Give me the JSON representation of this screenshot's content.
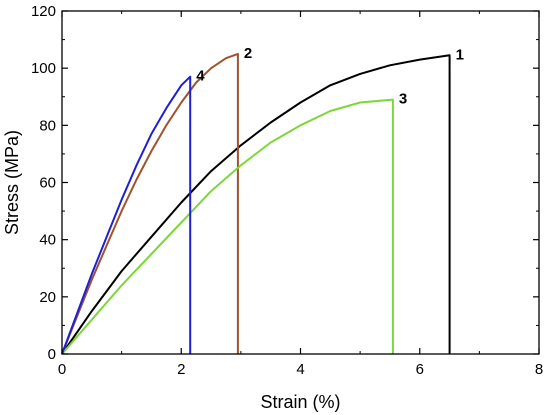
{
  "chart_data": {
    "type": "line",
    "title": "",
    "xlabel": "Strain (%)",
    "ylabel": "Stress (MPa)",
    "xlim": [
      0,
      8
    ],
    "ylim": [
      0,
      120
    ],
    "x_ticks": [
      0,
      2,
      4,
      6,
      8
    ],
    "y_ticks": [
      0,
      20,
      40,
      60,
      80,
      100,
      120
    ],
    "x_tick_labels": [
      "0",
      "2",
      "4",
      "6",
      "8"
    ],
    "y_tick_labels": [
      "0",
      "20",
      "40",
      "60",
      "80",
      "100",
      "120"
    ],
    "grid": false,
    "legend": "none",
    "series": [
      {
        "label": "1",
        "color": "#000000",
        "x": [
          0,
          0.5,
          1.0,
          1.5,
          2.0,
          2.5,
          3.0,
          3.5,
          4.0,
          4.5,
          5.0,
          5.5,
          6.0,
          6.5,
          6.5
        ],
        "y": [
          0,
          15,
          29,
          41,
          53,
          64,
          73,
          81,
          88,
          94,
          98,
          101,
          103,
          104.5,
          0
        ]
      },
      {
        "label": "2",
        "color": "#a0522d",
        "x": [
          0,
          0.25,
          0.5,
          0.75,
          1.0,
          1.25,
          1.5,
          1.75,
          2.0,
          2.25,
          2.5,
          2.75,
          2.95,
          2.95
        ],
        "y": [
          0,
          13,
          26,
          38,
          50,
          61,
          71,
          80,
          88,
          95,
          100,
          103.5,
          105,
          0
        ]
      },
      {
        "label": "3",
        "color": "#7dd63a",
        "x": [
          0,
          0.5,
          1.0,
          1.5,
          2.0,
          2.5,
          3.0,
          3.5,
          4.0,
          4.5,
          5.0,
          5.55,
          5.55
        ],
        "y": [
          0,
          12,
          24,
          35,
          46,
          57,
          66,
          74,
          80,
          85,
          88,
          89,
          0
        ]
      },
      {
        "label": "4",
        "color": "#1f1fd8",
        "x": [
          0,
          0.25,
          0.5,
          0.75,
          1.0,
          1.25,
          1.5,
          1.75,
          2.0,
          2.15,
          2.15
        ],
        "y": [
          0,
          14,
          28,
          41,
          54,
          66,
          77,
          86,
          94,
          97,
          0
        ]
      }
    ]
  }
}
